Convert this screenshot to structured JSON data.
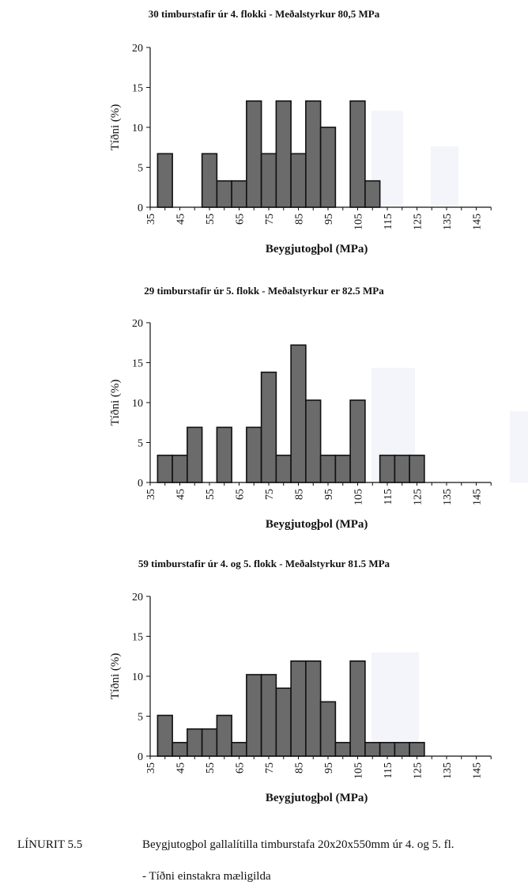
{
  "chart_data": [
    {
      "type": "bar",
      "title": "30 timburstafir úr 4. flokki - Meðalstyrkur 80,5 MPa",
      "xlabel": "Beygjutogþol (MPa)",
      "ylabel": "Tíðni (%)",
      "ylim": [
        0,
        20
      ],
      "yticks": [
        "0",
        "5",
        "10",
        "15",
        "20"
      ],
      "xticks": [
        "35",
        "45",
        "55",
        "65",
        "75",
        "85",
        "95",
        "105",
        "115",
        "125",
        "135",
        "145"
      ],
      "xlim": [
        35,
        150
      ],
      "bin_width": 2.5,
      "bars": [
        {
          "x": 40,
          "value": 6.7
        },
        {
          "x": 55,
          "value": 6.7
        },
        {
          "x": 60,
          "value": 3.3
        },
        {
          "x": 65,
          "value": 3.3
        },
        {
          "x": 70,
          "value": 13.3
        },
        {
          "x": 75,
          "value": 6.7
        },
        {
          "x": 80,
          "value": 13.3
        },
        {
          "x": 85,
          "value": 6.7
        },
        {
          "x": 90,
          "value": 13.3
        },
        {
          "x": 95,
          "value": 10
        },
        {
          "x": 105,
          "value": 13.3
        },
        {
          "x": 110,
          "value": 3.3
        }
      ]
    },
    {
      "type": "bar",
      "title": "29 timburstafir úr 5. flokk - Meðalstyrkur er 82.5 MPa",
      "xlabel": "Beygjutogþol (MPa)",
      "ylabel": "Tíðni (%)",
      "ylim": [
        0,
        20
      ],
      "yticks": [
        "0",
        "5",
        "10",
        "15",
        "20"
      ],
      "xticks": [
        "35",
        "45",
        "55",
        "65",
        "75",
        "85",
        "95",
        "105",
        "115",
        "125",
        "135",
        "145"
      ],
      "xlim": [
        35,
        150
      ],
      "bin_width": 2.5,
      "bars": [
        {
          "x": 40,
          "value": 3.4
        },
        {
          "x": 45,
          "value": 3.4
        },
        {
          "x": 50,
          "value": 6.9
        },
        {
          "x": 60,
          "value": 6.9
        },
        {
          "x": 70,
          "value": 6.9
        },
        {
          "x": 75,
          "value": 13.8
        },
        {
          "x": 80,
          "value": 3.4
        },
        {
          "x": 85,
          "value": 17.2
        },
        {
          "x": 90,
          "value": 10.3
        },
        {
          "x": 95,
          "value": 3.4
        },
        {
          "x": 100,
          "value": 3.4
        },
        {
          "x": 105,
          "value": 10.3
        },
        {
          "x": 115,
          "value": 3.4
        },
        {
          "x": 120,
          "value": 3.4
        },
        {
          "x": 125,
          "value": 3.4
        }
      ]
    },
    {
      "type": "bar",
      "title": "59 timburstafir úr 4. og 5. flokk - Meðalstyrkur 81.5 MPa",
      "xlabel": "Beygjutogþol (MPa)",
      "ylabel": "Tíðni (%)",
      "ylim": [
        0,
        20
      ],
      "yticks": [
        "0",
        "5",
        "10",
        "15",
        "20"
      ],
      "xticks": [
        "35",
        "45",
        "55",
        "65",
        "75",
        "85",
        "95",
        "105",
        "115",
        "125",
        "135",
        "145"
      ],
      "xlim": [
        35,
        150
      ],
      "bin_width": 2.5,
      "bars": [
        {
          "x": 40,
          "value": 5.1
        },
        {
          "x": 45,
          "value": 1.7
        },
        {
          "x": 50,
          "value": 3.4
        },
        {
          "x": 55,
          "value": 3.4
        },
        {
          "x": 60,
          "value": 5.1
        },
        {
          "x": 65,
          "value": 1.7
        },
        {
          "x": 70,
          "value": 10.2
        },
        {
          "x": 75,
          "value": 10.2
        },
        {
          "x": 80,
          "value": 8.5
        },
        {
          "x": 85,
          "value": 11.9
        },
        {
          "x": 90,
          "value": 11.9
        },
        {
          "x": 95,
          "value": 6.8
        },
        {
          "x": 100,
          "value": 1.7
        },
        {
          "x": 105,
          "value": 11.9
        },
        {
          "x": 110,
          "value": 1.7
        },
        {
          "x": 115,
          "value": 1.7
        },
        {
          "x": 120,
          "value": 1.7
        },
        {
          "x": 125,
          "value": 1.7
        }
      ]
    }
  ],
  "caption": {
    "label": "LÍNURIT 5.5",
    "text": "Beygjutogþol gallalítilla timburstafa 20x20x550mm úr 4. og 5. fl.",
    "subtext": "- Tíðni einstakra mæligilda"
  },
  "colors": {
    "bar_fill": "#6b6b6b",
    "bar_stroke": "#111111",
    "axis": "#111111",
    "bleed": "#e9ecf6"
  }
}
